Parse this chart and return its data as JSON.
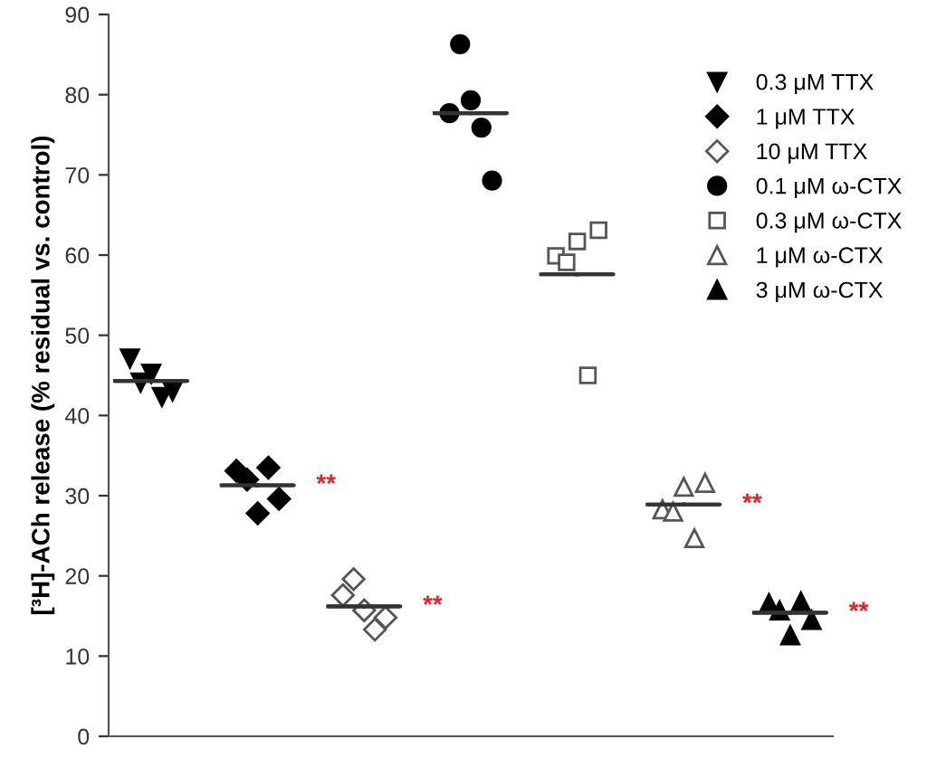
{
  "chart_data": {
    "type": "scatter",
    "ylabel": "[³H]-ACh release (% residual vs. control)",
    "categories": [
      null,
      null,
      null,
      null,
      null,
      null,
      null
    ],
    "ylim": [
      0,
      90
    ],
    "yticks": [
      0,
      10,
      20,
      30,
      40,
      50,
      60,
      70,
      80,
      90
    ],
    "tick_labels": "y",
    "grid": false,
    "legend": "top right",
    "series": [
      {
        "name": "0.3 μM TTX",
        "color": "#000000",
        "marker": "triangle_down",
        "values": [
          47.1,
          null,
          null,
          null,
          null,
          null,
          null
        ]
      },
      {
        "color": "#000000",
        "marker": "triangle_down",
        "values": [
          44.1,
          null,
          null,
          null,
          null,
          null,
          null
        ]
      },
      {
        "color": "#000000",
        "marker": "triangle_down",
        "values": [
          45.2,
          null,
          null,
          null,
          null,
          null,
          null
        ]
      },
      {
        "color": "#000000",
        "marker": "triangle_down",
        "values": [
          42.3,
          null,
          null,
          null,
          null,
          null,
          null
        ]
      },
      {
        "color": "#000000",
        "marker": "triangle_down",
        "values": [
          43.0,
          null,
          null,
          null,
          null,
          null,
          null
        ]
      },
      {
        "name": "1 μM TTX",
        "color": "#000000",
        "marker": "diamond",
        "values": [
          null,
          33.1,
          null,
          null,
          null,
          null,
          null
        ]
      },
      {
        "color": "#000000",
        "marker": "diamond",
        "values": [
          null,
          32.0,
          null,
          null,
          null,
          null,
          null
        ]
      },
      {
        "color": "#000000",
        "marker": "diamond",
        "values": [
          null,
          27.8,
          null,
          null,
          null,
          null,
          null
        ]
      },
      {
        "color": "#000000",
        "marker": "diamond",
        "values": [
          null,
          33.5,
          null,
          null,
          null,
          null,
          null
        ]
      },
      {
        "color": "#000000",
        "marker": "diamond",
        "values": [
          null,
          29.6,
          null,
          null,
          null,
          null,
          null
        ]
      },
      {
        "name": "10 μM TTX",
        "color": "#555555",
        "marker": "diamond open",
        "values": [
          null,
          null,
          17.6,
          null,
          null,
          null,
          null
        ]
      },
      {
        "color": "#555555",
        "marker": "diamond open",
        "values": [
          null,
          null,
          19.6,
          null,
          null,
          null,
          null
        ]
      },
      {
        "color": "#555555",
        "marker": "diamond open",
        "values": [
          null,
          null,
          15.7,
          null,
          null,
          null,
          null
        ]
      },
      {
        "color": "#555555",
        "marker": "diamond open",
        "values": [
          null,
          null,
          13.3,
          null,
          null,
          null,
          null
        ]
      },
      {
        "color": "#555555",
        "marker": "diamond open",
        "values": [
          null,
          null,
          14.8,
          null,
          null,
          null,
          null
        ]
      },
      {
        "name": "0.1 μM ω-CTX",
        "color": "#000000",
        "marker": "circle",
        "values": [
          null,
          null,
          null,
          77.7,
          null,
          null,
          null
        ]
      },
      {
        "color": "#000000",
        "marker": "circle",
        "values": [
          null,
          null,
          null,
          86.3,
          null,
          null,
          null
        ]
      },
      {
        "color": "#000000",
        "marker": "circle",
        "values": [
          null,
          null,
          null,
          79.3,
          null,
          null,
          null
        ]
      },
      {
        "color": "#000000",
        "marker": "circle",
        "values": [
          null,
          null,
          null,
          75.9,
          null,
          null,
          null
        ]
      },
      {
        "color": "#000000",
        "marker": "circle",
        "values": [
          null,
          null,
          null,
          69.3,
          null,
          null,
          null
        ]
      },
      {
        "name": "0.3 μM ω-CTX",
        "color": "#555555",
        "marker": "square open",
        "values": [
          null,
          null,
          null,
          null,
          59.9,
          null,
          null
        ]
      },
      {
        "color": "#555555",
        "marker": "square open",
        "values": [
          null,
          null,
          null,
          null,
          59.1,
          null,
          null
        ]
      },
      {
        "color": "#555555",
        "marker": "square open",
        "values": [
          null,
          null,
          null,
          null,
          61.7,
          null,
          null
        ]
      },
      {
        "color": "#555555",
        "marker": "square open",
        "values": [
          null,
          null,
          null,
          null,
          45.0,
          null,
          null
        ]
      },
      {
        "color": "#555555",
        "marker": "square open",
        "values": [
          null,
          null,
          null,
          null,
          63.1,
          null,
          null
        ]
      },
      {
        "name": "1 μM ω-CTX",
        "color": "#555555",
        "marker": "triangle open",
        "values": [
          null,
          null,
          null,
          null,
          null,
          28.3,
          null
        ]
      },
      {
        "color": "#555555",
        "marker": "triangle open",
        "values": [
          null,
          null,
          null,
          null,
          null,
          28.0,
          null
        ]
      },
      {
        "color": "#555555",
        "marker": "triangle open",
        "values": [
          null,
          null,
          null,
          null,
          null,
          31.1,
          null
        ]
      },
      {
        "color": "#555555",
        "marker": "triangle open",
        "values": [
          null,
          null,
          null,
          null,
          null,
          24.7,
          null
        ]
      },
      {
        "color": "#555555",
        "marker": "triangle open",
        "values": [
          null,
          null,
          null,
          null,
          null,
          31.6,
          null
        ]
      },
      {
        "name": "3 μM ω-CTX",
        "color": "#000000",
        "marker": "triangle",
        "values": [
          null,
          null,
          null,
          null,
          null,
          null,
          16.6
        ]
      },
      {
        "color": "#000000",
        "marker": "triangle",
        "values": [
          null,
          null,
          null,
          null,
          null,
          null,
          15.7
        ]
      },
      {
        "color": "#000000",
        "marker": "triangle",
        "values": [
          null,
          null,
          null,
          null,
          null,
          null,
          12.6
        ]
      },
      {
        "color": "#000000",
        "marker": "triangle",
        "values": [
          null,
          null,
          null,
          null,
          null,
          null,
          16.8
        ]
      },
      {
        "color": "#000000",
        "marker": "triangle",
        "values": [
          null,
          null,
          null,
          null,
          null,
          null,
          14.5
        ]
      },
      {
        "type": "box",
        "color": "#333333",
        "boxes": [
          {
            "low": 44.3,
            "q1": 44.3,
            "median": 44.3,
            "q3": 44.3,
            "high": 44.3
          },
          {
            "low": 31.3,
            "q1": 31.3,
            "median": 31.3,
            "q3": 31.3,
            "high": 31.3
          },
          {
            "low": 16.2,
            "q1": 16.2,
            "median": 16.2,
            "q3": 16.2,
            "high": 16.2
          },
          {
            "low": 77.7,
            "q1": 77.7,
            "median": 77.7,
            "q3": 77.7,
            "high": 77.7
          },
          {
            "low": 57.6,
            "q1": 57.6,
            "median": 57.6,
            "q3": 57.6,
            "high": 57.6
          },
          {
            "low": 28.9,
            "q1": 28.9,
            "median": 28.9,
            "q3": 28.9,
            "high": 28.9
          },
          {
            "low": 15.4,
            "q1": 15.4,
            "median": 15.4,
            "q3": 15.4,
            "high": 15.4
          }
        ],
        "value_labels": [
          null,
          "**",
          "**",
          null,
          null,
          "**",
          "**"
        ]
      }
    ]
  }
}
